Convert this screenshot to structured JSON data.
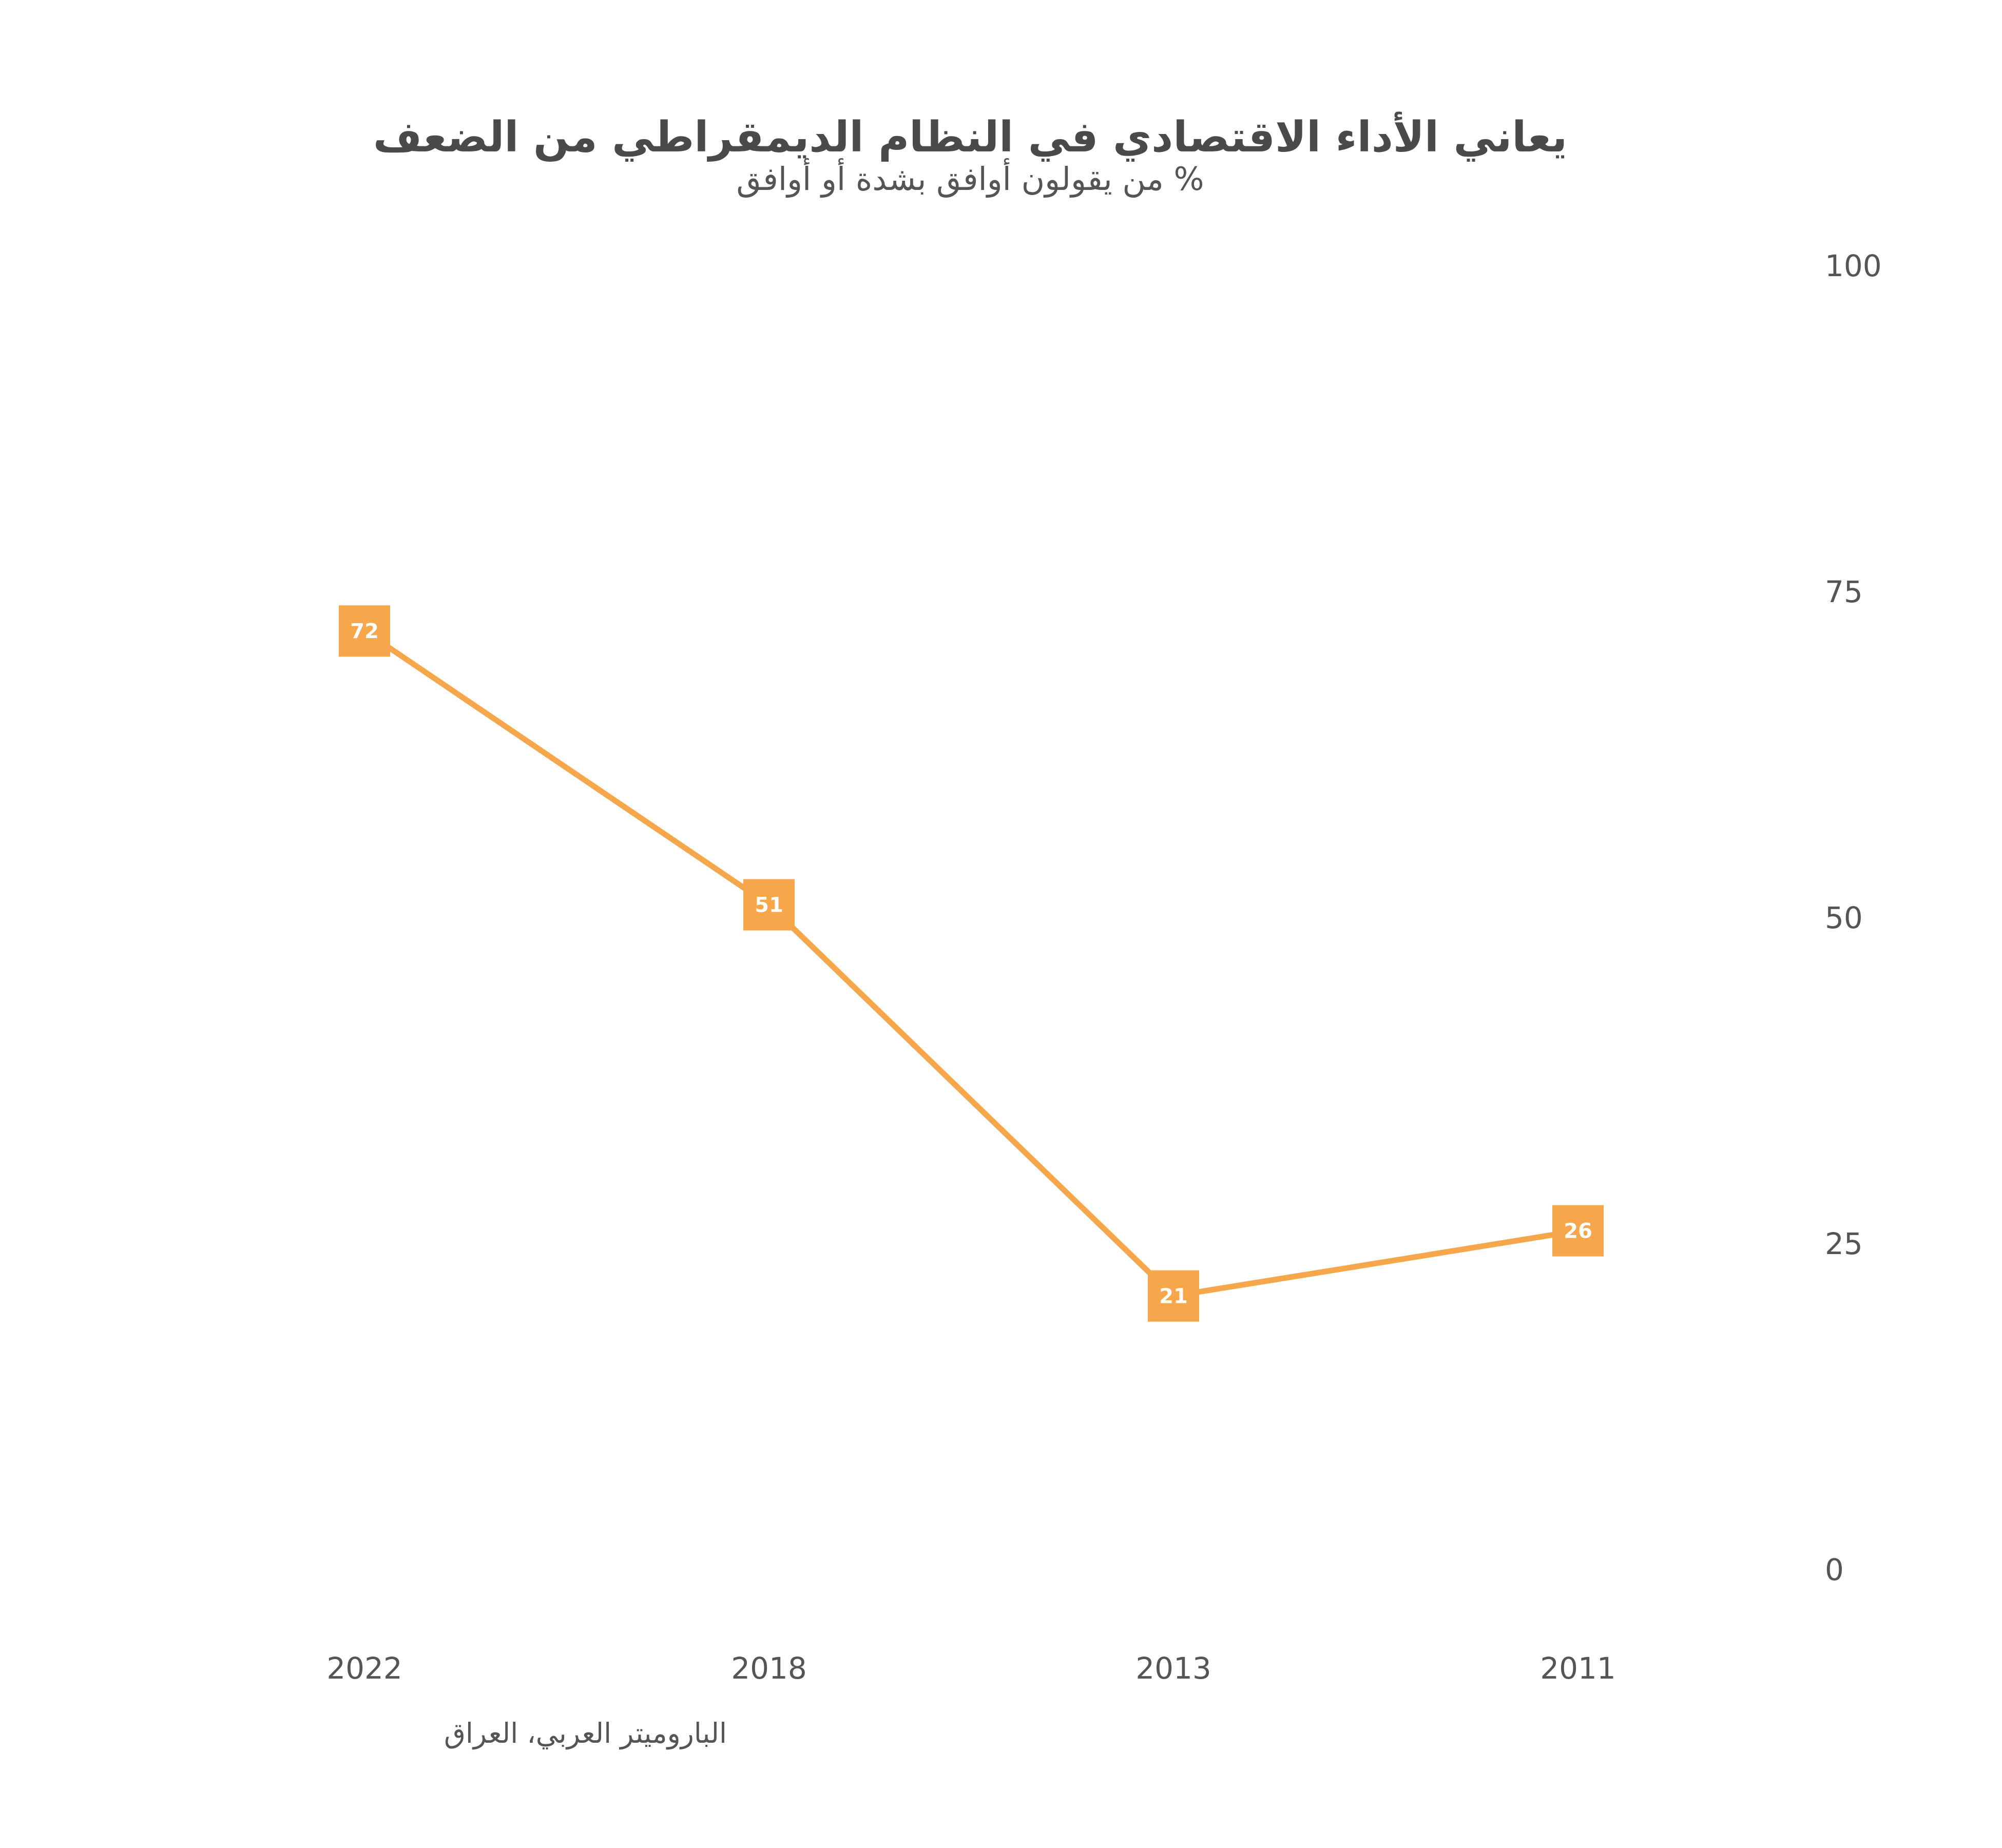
{
  "chart_data": {
    "type": "line",
    "title": "يعاني الأداء الاقتصادي في النظام الديمقراطي من الضعف",
    "subtitle": "% من يقولون أوافق بشدة أو أوافق",
    "categories": [
      "2022",
      "2018",
      "2013",
      "2011"
    ],
    "series": [
      {
        "values": [
          72,
          51,
          21,
          26
        ]
      }
    ],
    "ylim": [
      0,
      100
    ],
    "yticks": [
      0,
      25,
      50,
      75,
      100
    ],
    "y_axis_side": "right",
    "grid": false,
    "legend": "none",
    "source": "الباروميتر العربي، العراق",
    "colors": {
      "line": "#f6a74c",
      "label_text": "#ffffff",
      "text": "#4a4a4a"
    }
  }
}
